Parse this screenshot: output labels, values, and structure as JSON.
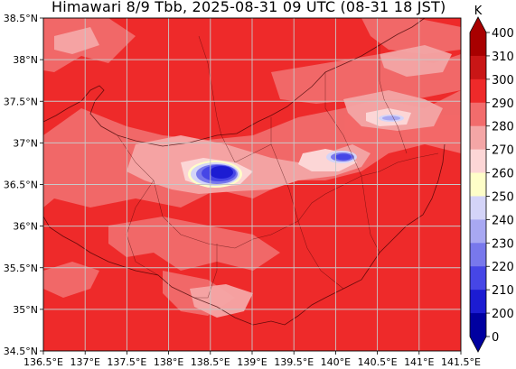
{
  "title": "Himawari 8/9 Tbb, 2025-08-31 09 UTC (08-31 18 JST)",
  "map": {
    "lon_range": [
      136.5,
      141.5
    ],
    "lat_range": [
      34.5,
      38.5
    ],
    "x_ticks": [
      "136.5°E",
      "137°E",
      "137.5°E",
      "138°E",
      "138.5°E",
      "139°E",
      "139.5°E",
      "140°E",
      "140.5°E",
      "141°E",
      "141.5°E"
    ],
    "y_ticks": [
      "34.5°N",
      "35°N",
      "35.5°N",
      "36°N",
      "36.5°N",
      "37°N",
      "37.5°N",
      "38°N",
      "38.5°N"
    ],
    "gridlines": true,
    "base_color": "#ee2a2a"
  },
  "colorbar": {
    "unit": "K",
    "labels": [
      "400",
      "310",
      "300",
      "290",
      "280",
      "270",
      "260",
      "250",
      "240",
      "230",
      "220",
      "210",
      "200",
      "0"
    ],
    "colors": [
      "#a80000",
      "#c91616",
      "#ee2a2a",
      "#f26c6c",
      "#f4a6a6",
      "#fcd6d6",
      "#fefec8",
      "#d4d4f8",
      "#a8a8f2",
      "#7878ec",
      "#4646e6",
      "#1c1cd2",
      "#0000a0"
    ]
  }
}
